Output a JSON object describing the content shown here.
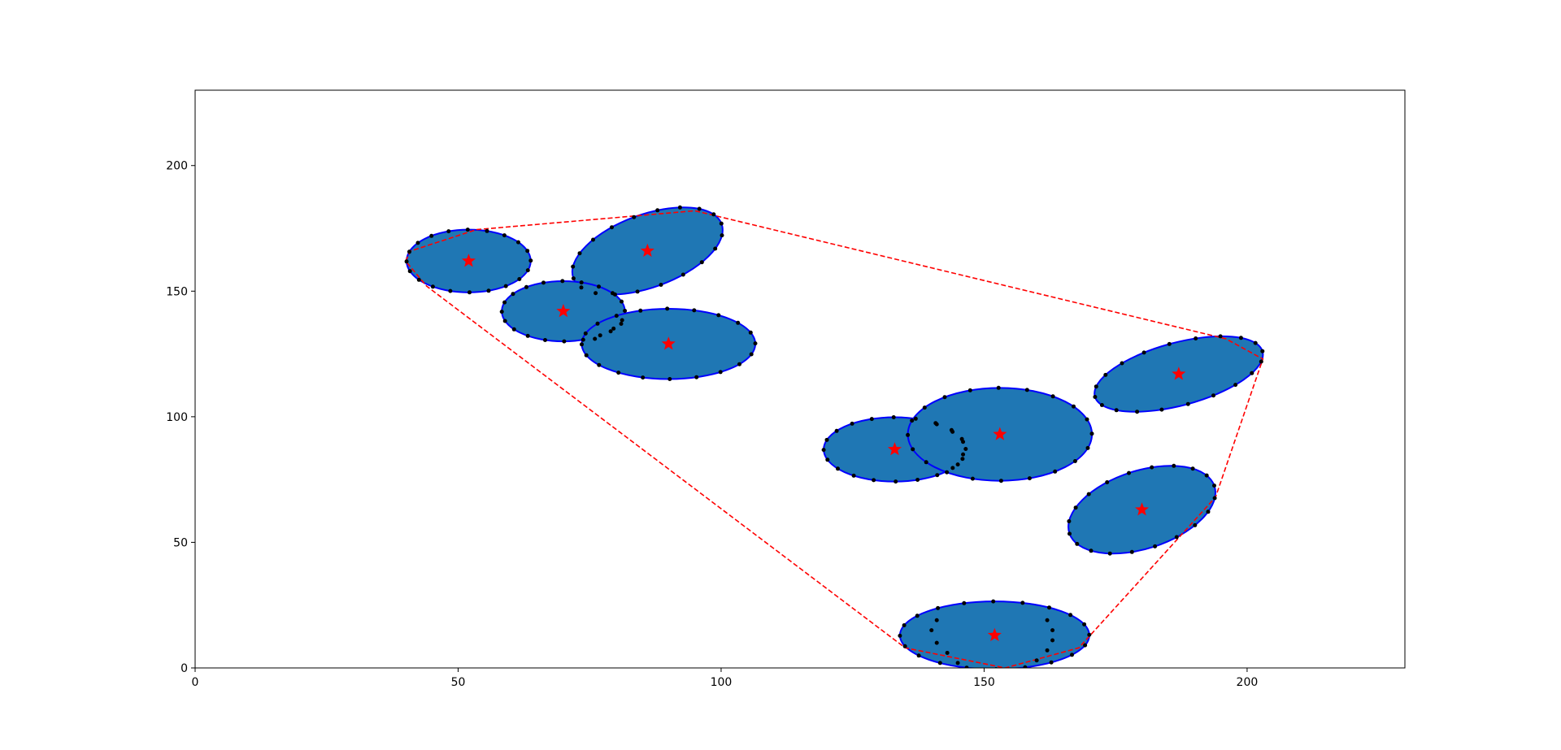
{
  "colors": {
    "ellipse_fill": "#1f77b4",
    "ellipse_edge": "#0000ff",
    "center_marker": "#ff0000",
    "sample_points": "#000000",
    "hull": "#ff0000",
    "axes": "#000000",
    "background": "#ffffff"
  },
  "chart_data": {
    "type": "scatter",
    "title": "",
    "xlabel": "",
    "ylabel": "",
    "xlim": [
      0,
      230
    ],
    "ylim": [
      0,
      230
    ],
    "grid": false,
    "legend": "none",
    "x_ticks": [
      0,
      50,
      100,
      150,
      200
    ],
    "y_ticks": [
      0,
      50,
      100,
      150,
      200
    ],
    "x_tick_labels": [
      "0",
      "50",
      "100",
      "150",
      "200"
    ],
    "y_tick_labels": [
      "0",
      "50",
      "100",
      "150",
      "200"
    ],
    "ellipses": [
      {
        "cx": 52,
        "cy": 162,
        "a": 11.8,
        "b": 12.5,
        "angle": 0
      },
      {
        "cx": 86,
        "cy": 166,
        "a": 15.0,
        "b": 14.5,
        "angle": 20
      },
      {
        "cx": 70,
        "cy": 142,
        "a": 11.7,
        "b": 12.0,
        "angle": 0
      },
      {
        "cx": 90,
        "cy": 129,
        "a": 16.5,
        "b": 14.0,
        "angle": 0
      },
      {
        "cx": 133,
        "cy": 87,
        "a": 13.5,
        "b": 12.8,
        "angle": 0
      },
      {
        "cx": 153,
        "cy": 93,
        "a": 17.5,
        "b": 18.5,
        "angle": 0
      },
      {
        "cx": 187,
        "cy": 117,
        "a": 16.5,
        "b": 12.5,
        "angle": 15
      },
      {
        "cx": 180,
        "cy": 63,
        "a": 14.5,
        "b": 15.5,
        "angle": 18
      },
      {
        "cx": 152,
        "cy": 13,
        "a": 18.0,
        "b": 13.5,
        "angle": 0
      }
    ],
    "centers": [
      {
        "x": 52,
        "y": 162
      },
      {
        "x": 86,
        "y": 166
      },
      {
        "x": 70,
        "y": 142
      },
      {
        "x": 90,
        "y": 129
      },
      {
        "x": 133,
        "y": 87
      },
      {
        "x": 153,
        "y": 93
      },
      {
        "x": 187,
        "y": 117
      },
      {
        "x": 180,
        "y": 63
      },
      {
        "x": 152,
        "y": 13
      }
    ],
    "interior_points": [
      {
        "x": 76,
        "y": 131
      },
      {
        "x": 79,
        "y": 134
      },
      {
        "x": 81,
        "y": 137
      },
      {
        "x": 141,
        "y": 97
      },
      {
        "x": 144,
        "y": 94
      },
      {
        "x": 146,
        "y": 90
      },
      {
        "x": 146,
        "y": 85
      },
      {
        "x": 145,
        "y": 81
      },
      {
        "x": 141,
        "y": 19
      },
      {
        "x": 140,
        "y": 15
      },
      {
        "x": 141,
        "y": 10
      },
      {
        "x": 143,
        "y": 6
      },
      {
        "x": 145,
        "y": 2
      },
      {
        "x": 162,
        "y": 19
      },
      {
        "x": 163,
        "y": 15
      },
      {
        "x": 163,
        "y": 11
      },
      {
        "x": 162,
        "y": 7
      },
      {
        "x": 160,
        "y": 3
      }
    ],
    "hull": [
      {
        "x": 53.5,
        "y": 174.5
      },
      {
        "x": 95.0,
        "y": 182.0
      },
      {
        "x": 196.0,
        "y": 131.0
      },
      {
        "x": 203.0,
        "y": 123.0
      },
      {
        "x": 194.0,
        "y": 68.0
      },
      {
        "x": 168.0,
        "y": 8.0
      },
      {
        "x": 154.0,
        "y": 0.0
      },
      {
        "x": 135.0,
        "y": 8.0
      },
      {
        "x": 44.0,
        "y": 152.0
      },
      {
        "x": 40.0,
        "y": 162.0
      },
      {
        "x": 41.0,
        "y": 166.0
      },
      {
        "x": 53.5,
        "y": 174.5
      }
    ]
  }
}
